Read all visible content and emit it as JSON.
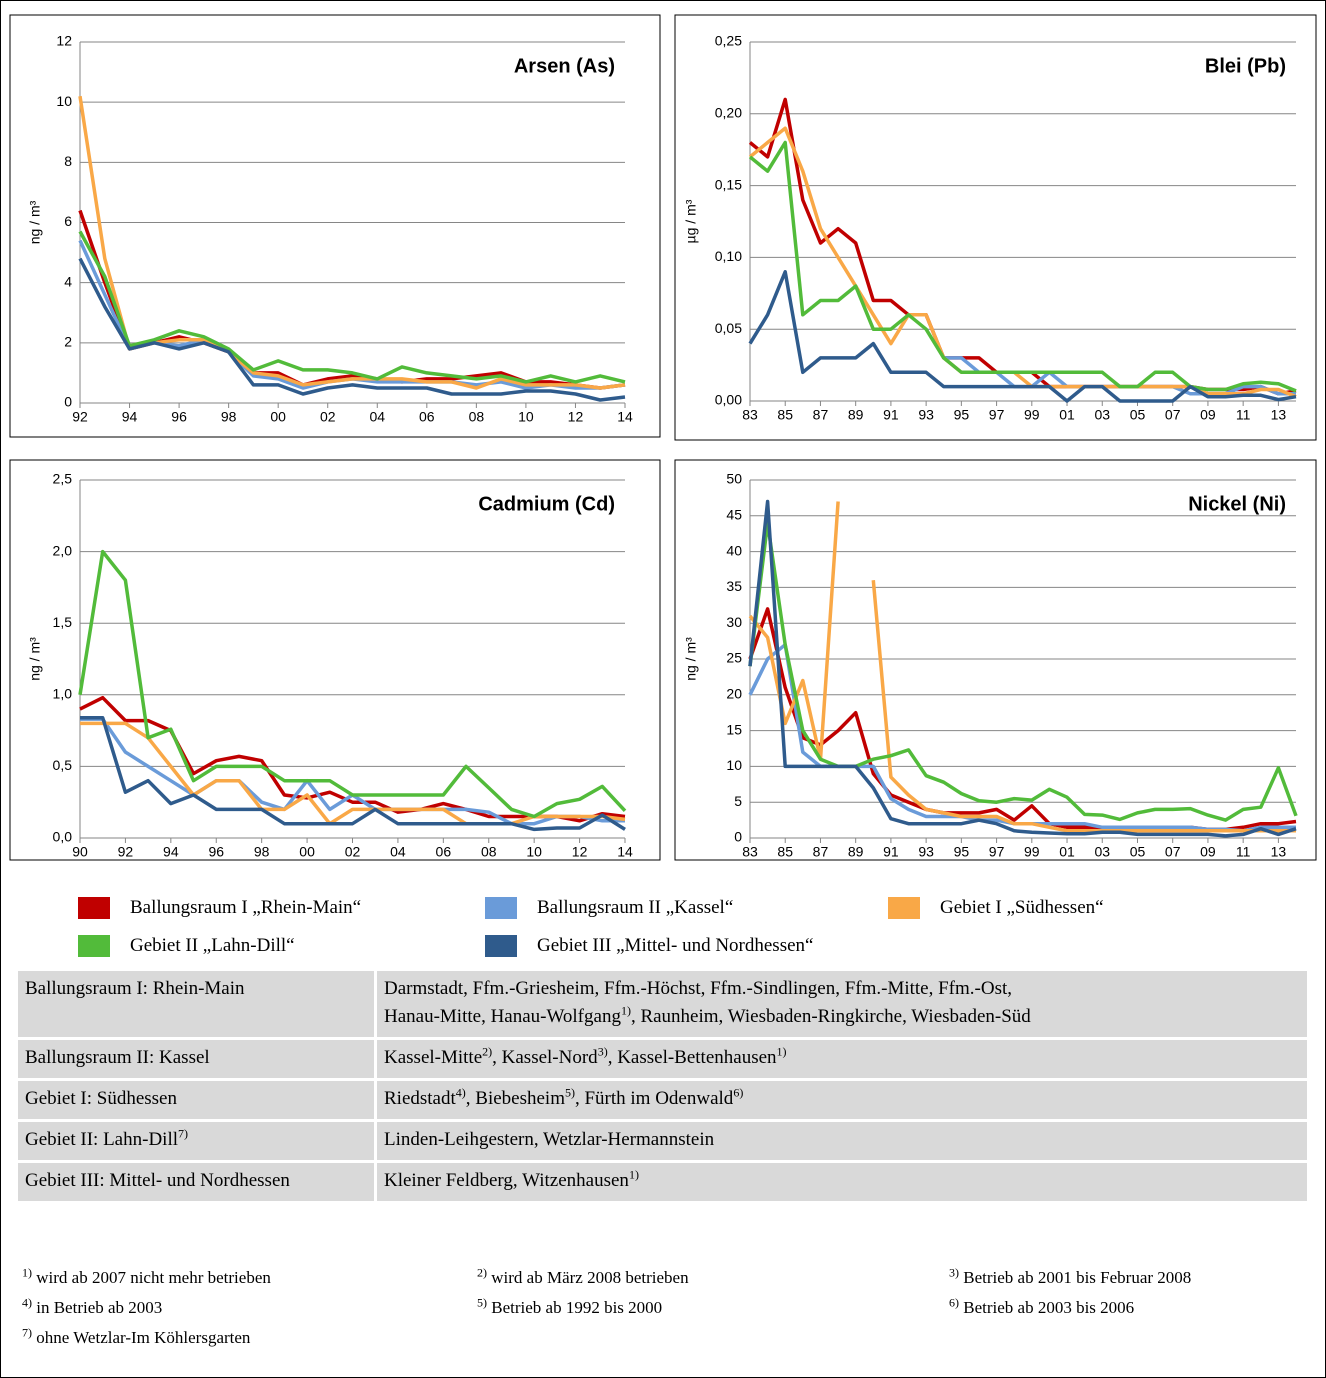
{
  "chart_data": [
    {
      "type": "line",
      "title": "Arsen (As)",
      "y_label": "ng / m³",
      "grid": true,
      "categories": [
        "92",
        null,
        "94",
        null,
        "96",
        null,
        "98",
        null,
        "00",
        null,
        "02",
        null,
        "04",
        null,
        "06",
        null,
        "08",
        null,
        "10",
        null,
        "12",
        null,
        "14"
      ],
      "ylim": [
        0,
        12
      ],
      "yticks": [
        0,
        2,
        4,
        6,
        8,
        10,
        12
      ],
      "series": [
        {
          "values": [
            6.4,
            4.0,
            1.8,
            2.0,
            2.2,
            2.0,
            1.7,
            1.0,
            1.0,
            0.6,
            0.8,
            0.9,
            0.8,
            0.7,
            0.8,
            0.8,
            0.9,
            1.0,
            0.7,
            0.7,
            0.6,
            0.5,
            0.6
          ]
        },
        {
          "values": [
            5.4,
            3.6,
            1.8,
            2.0,
            1.9,
            2.1,
            1.7,
            0.9,
            0.8,
            0.5,
            0.7,
            0.8,
            0.7,
            0.7,
            0.7,
            0.7,
            0.6,
            0.7,
            0.5,
            0.6,
            0.5,
            0.5,
            0.6
          ]
        },
        {
          "values": [
            10.2,
            4.8,
            1.8,
            2.0,
            2.1,
            2.1,
            1.7,
            1.0,
            0.9,
            0.6,
            0.7,
            0.8,
            0.8,
            0.8,
            0.7,
            0.7,
            0.5,
            0.8,
            0.6,
            0.6,
            0.6,
            0.5,
            0.6
          ]
        },
        {
          "values": [
            5.7,
            4.2,
            1.9,
            2.1,
            2.4,
            2.2,
            1.8,
            1.1,
            1.4,
            1.1,
            1.1,
            1.0,
            0.8,
            1.2,
            1.0,
            0.9,
            0.8,
            0.9,
            0.7,
            0.9,
            0.7,
            0.9,
            0.7
          ]
        },
        {
          "values": [
            4.8,
            3.2,
            1.8,
            2.0,
            1.8,
            2.0,
            1.7,
            0.6,
            0.6,
            0.3,
            0.5,
            0.6,
            0.5,
            0.5,
            0.5,
            0.3,
            0.3,
            0.3,
            0.4,
            0.4,
            0.3,
            0.1,
            0.2
          ]
        }
      ]
    },
    {
      "type": "line",
      "title": "Blei (Pb)",
      "y_label": "µg / m³",
      "grid": true,
      "categories": [
        "83",
        null,
        "85",
        null,
        "87",
        null,
        "89",
        null,
        "91",
        null,
        "93",
        null,
        "95",
        null,
        "97",
        null,
        "99",
        null,
        "01",
        null,
        "03",
        null,
        "05",
        null,
        "07",
        null,
        "09",
        null,
        "11",
        null,
        "13",
        null
      ],
      "ylim": [
        0,
        0.25
      ],
      "yticks": [
        {
          "value": 0,
          "label": "0,00"
        },
        {
          "value": 0.05,
          "label": "0,05"
        },
        {
          "value": 0.1,
          "label": "0,10"
        },
        {
          "value": 0.15,
          "label": "0,15"
        },
        {
          "value": 0.2,
          "label": "0,20"
        },
        {
          "value": 0.25,
          "label": "0,25"
        }
      ],
      "series": [
        {
          "values": [
            0.18,
            0.17,
            0.21,
            0.14,
            0.11,
            0.12,
            0.11,
            0.07,
            0.07,
            0.06,
            0.06,
            0.03,
            0.03,
            0.03,
            0.02,
            0.02,
            0.02,
            0.01,
            0.01,
            0.01,
            0.01,
            0.01,
            0.01,
            0.01,
            0.01,
            0.01,
            0.008,
            0.008,
            0.008,
            0.01,
            0.005,
            0.007
          ]
        },
        {
          "values": [
            null,
            null,
            null,
            null,
            null,
            null,
            null,
            null,
            null,
            null,
            null,
            0.03,
            0.03,
            0.02,
            0.02,
            0.01,
            0.01,
            0.02,
            0.01,
            0.01,
            0.01,
            0.01,
            0.01,
            0.01,
            0.01,
            0.005,
            0.005,
            0.005,
            0.01,
            0.01,
            0.005,
            0.005
          ]
        },
        {
          "values": [
            0.17,
            0.18,
            0.19,
            0.16,
            0.12,
            0.1,
            0.08,
            0.06,
            0.04,
            0.06,
            0.06,
            0.03,
            0.02,
            0.02,
            0.02,
            0.02,
            0.01,
            0.01,
            0.01,
            0.01,
            0.01,
            0.01,
            0.01,
            0.01,
            0.01,
            0.01,
            0.005,
            0.005,
            0.005,
            0.008,
            0.008,
            0.003
          ]
        },
        {
          "values": [
            0.17,
            0.16,
            0.18,
            0.06,
            0.07,
            0.07,
            0.08,
            0.05,
            0.05,
            0.06,
            0.05,
            0.03,
            0.02,
            0.02,
            0.02,
            0.02,
            0.02,
            0.02,
            0.02,
            0.02,
            0.02,
            0.01,
            0.01,
            0.02,
            0.02,
            0.01,
            0.008,
            0.008,
            0.012,
            0.013,
            0.012,
            0.007
          ]
        },
        {
          "values": [
            0.04,
            0.06,
            0.09,
            0.02,
            0.03,
            0.03,
            0.03,
            0.04,
            0.02,
            0.02,
            0.02,
            0.01,
            0.01,
            0.01,
            0.01,
            0.01,
            0.01,
            0.01,
            0,
            0.01,
            0.01,
            0,
            0,
            0,
            0,
            0.01,
            0.003,
            0.003,
            0.004,
            0.004,
            0.001,
            0.003
          ]
        }
      ]
    },
    {
      "type": "line",
      "title": "Cadmium (Cd)",
      "y_label": "ng / m³",
      "grid": true,
      "categories": [
        "90",
        null,
        "92",
        null,
        "94",
        null,
        "96",
        null,
        "98",
        null,
        "00",
        null,
        "02",
        null,
        "04",
        null,
        "06",
        null,
        "08",
        null,
        "10",
        null,
        "12",
        null,
        "14"
      ],
      "ylim": [
        0,
        2.5
      ],
      "yticks": [
        {
          "value": 0,
          "label": "0,0"
        },
        {
          "value": 0.5,
          "label": "0,5"
        },
        {
          "value": 1,
          "label": "1,0"
        },
        {
          "value": 1.5,
          "label": "1,5"
        },
        {
          "value": 2,
          "label": "2,0"
        },
        {
          "value": 2.5,
          "label": "2,5"
        }
      ],
      "series": [
        {
          "values": [
            0.9,
            0.98,
            0.82,
            0.82,
            0.75,
            0.45,
            0.54,
            0.57,
            0.54,
            0.3,
            0.28,
            0.32,
            0.25,
            0.25,
            0.18,
            0.2,
            0.24,
            0.2,
            0.15,
            0.15,
            0.15,
            0.15,
            0.12,
            0.17,
            0.15
          ]
        },
        {
          "values": [
            0.83,
            0.83,
            0.6,
            0.5,
            0.4,
            0.3,
            0.4,
            0.4,
            0.25,
            0.2,
            0.4,
            0.2,
            0.3,
            0.2,
            0.2,
            0.2,
            0.2,
            0.2,
            0.18,
            0.1,
            0.1,
            0.15,
            0.15,
            0.12,
            0.12
          ]
        },
        {
          "values": [
            0.8,
            0.8,
            0.8,
            0.7,
            0.5,
            0.3,
            0.4,
            0.4,
            0.2,
            0.2,
            0.3,
            0.1,
            0.2,
            0.2,
            0.2,
            0.2,
            0.2,
            0.1,
            0.1,
            0.1,
            0.15,
            0.15,
            0.15,
            0.15,
            0.13
          ]
        },
        {
          "values": [
            1.0,
            2.0,
            1.8,
            0.7,
            0.76,
            0.4,
            0.5,
            0.5,
            0.5,
            0.4,
            0.4,
            0.4,
            0.3,
            0.3,
            0.3,
            0.3,
            0.3,
            0.5,
            0.35,
            0.2,
            0.15,
            0.24,
            0.27,
            0.36,
            0.19
          ]
        },
        {
          "values": [
            0.84,
            0.84,
            0.32,
            0.4,
            0.24,
            0.3,
            0.2,
            0.2,
            0.2,
            0.1,
            0.1,
            0.1,
            0.1,
            0.2,
            0.1,
            0.1,
            0.1,
            0.1,
            0.1,
            0.1,
            0.06,
            0.07,
            0.07,
            0.16,
            0.06
          ]
        }
      ]
    },
    {
      "type": "line",
      "title": "Nickel (Ni)",
      "y_label": "ng / m³",
      "grid": true,
      "categories": [
        "83",
        null,
        "85",
        null,
        "87",
        null,
        "89",
        null,
        "91",
        null,
        "93",
        null,
        "95",
        null,
        "97",
        null,
        "99",
        null,
        "01",
        null,
        "03",
        null,
        "05",
        null,
        "07",
        null,
        "09",
        null,
        "11",
        null,
        "13",
        null
      ],
      "ylim": [
        0,
        50
      ],
      "yticks": [
        0,
        5,
        10,
        15,
        20,
        25,
        30,
        35,
        40,
        45,
        50
      ],
      "series": [
        {
          "values": [
            25,
            32,
            21,
            14,
            13,
            15,
            17.5,
            9,
            6,
            5,
            4,
            3.5,
            3.5,
            3.5,
            4,
            2.5,
            4.5,
            2,
            1.5,
            1.5,
            1.5,
            1.5,
            1.5,
            1.5,
            1.5,
            1.5,
            1.2,
            1.2,
            1.5,
            2,
            2,
            2.3
          ]
        },
        {
          "values": [
            20,
            25,
            27,
            12,
            10,
            10,
            10,
            10,
            5.5,
            4,
            3,
            3,
            3,
            2.5,
            2.5,
            2,
            2,
            2,
            2,
            2,
            1.5,
            1.5,
            1.5,
            1.5,
            1.5,
            1.5,
            1.2,
            1.2,
            1,
            1.5,
            1.5,
            1.5
          ]
        },
        {
          "values": [
            31,
            28,
            16,
            22,
            11,
            47,
            null,
            36,
            8.5,
            6,
            4,
            3.5,
            3,
            3,
            3,
            2,
            2,
            1.5,
            1,
            1,
            1,
            1,
            1,
            1,
            1,
            1,
            1,
            1,
            1,
            1,
            1,
            1
          ]
        },
        {
          "values": [
            24,
            44,
            27,
            15,
            11,
            10,
            10,
            11,
            11.5,
            12.3,
            8.7,
            7.8,
            6.2,
            5.2,
            5,
            5.5,
            5.3,
            6.8,
            5.7,
            3.3,
            3.2,
            2.6,
            3.5,
            4,
            4,
            4.1,
            3.2,
            2.5,
            4,
            4.3,
            9.8,
            3.1
          ]
        },
        {
          "values": [
            24,
            47,
            10,
            10,
            10,
            10,
            10,
            7,
            2.7,
            2,
            2,
            2,
            2,
            2.5,
            2,
            1,
            0.8,
            0.7,
            0.6,
            0.6,
            0.8,
            0.8,
            0.5,
            0.5,
            0.5,
            0.5,
            0.5,
            0.3,
            0.5,
            1.3,
            0.5,
            1.3
          ]
        }
      ]
    }
  ],
  "legend": [
    {
      "name": "Ballungsraum I „Rhein-Main“",
      "color": "#c00000"
    },
    {
      "name": "Ballungsraum II „Kassel“",
      "color": "#6a9bd9"
    },
    {
      "name": "Gebiet I „Südhessen“",
      "color": "#f9a847"
    },
    {
      "name": "Gebiet II „Lahn-Dill“",
      "color": "#52bb3a"
    },
    {
      "name": "Gebiet III „Mittel- und Nordhessen“",
      "color": "#2f5b8c"
    }
  ],
  "table": {
    "rows": [
      [
        [
          [
            {
              "text": "Ballungsraum I: Rhein-Main"
            }
          ]
        ],
        [
          [
            {
              "text": "Darmstadt, Ffm.-Griesheim, Ffm.-Höchst, Ffm.-Sindlingen, Ffm.-Mitte, Ffm.-Ost,"
            }
          ],
          [
            {
              "text": "Hanau-Mitte, Hanau-Wolfgang",
              "sup": "1)"
            },
            {
              "text": ", Raunheim, Wiesbaden-Ringkirche, Wiesbaden-Süd"
            }
          ]
        ]
      ],
      [
        [
          [
            {
              "text": "Ballungsraum II: Kassel"
            }
          ]
        ],
        [
          [
            {
              "text": "Kassel-Mitte",
              "sup": "2)"
            },
            {
              "text": ", Kassel-Nord",
              "sup": "3)"
            },
            {
              "text": ", Kassel-Bettenhausen",
              "sup": "1)"
            }
          ]
        ]
      ],
      [
        [
          [
            {
              "text": "Gebiet I: Südhessen"
            }
          ]
        ],
        [
          [
            {
              "text": "Riedstadt",
              "sup": "4)"
            },
            {
              "text": ", Biebesheim",
              "sup": "5)"
            },
            {
              "text": ", Fürth im Odenwald",
              "sup": "6)"
            }
          ]
        ]
      ],
      [
        [
          [
            {
              "text": "Gebiet II: Lahn-Dill",
              "sup": "7)"
            }
          ]
        ],
        [
          [
            {
              "text": "Linden-Leihgestern, Wetzlar-Hermannstein"
            }
          ]
        ]
      ],
      [
        [
          [
            {
              "text": "Gebiet III: Mittel- und Nordhessen"
            }
          ]
        ],
        [
          [
            {
              "text": "Kleiner Feldberg, Witzenhausen",
              "sup": "1)"
            }
          ]
        ]
      ]
    ]
  },
  "footnotes": [
    {
      "mark": "1)",
      "text": "wird ab 2007 nicht mehr betrieben"
    },
    {
      "mark": "2)",
      "text": "wird ab März 2008 betrieben"
    },
    {
      "mark": "3)",
      "text": "Betrieb ab 2001 bis Februar 2008"
    },
    {
      "mark": "4)",
      "text": "in Betrieb ab 2003"
    },
    {
      "mark": "5)",
      "text": "Betrieb ab 1992 bis 2000"
    },
    {
      "mark": "6)",
      "text": "Betrieb ab 2003 bis 2006"
    },
    {
      "mark": "7)",
      "text": "ohne Wetzlar-Im Köhlersgarten"
    }
  ]
}
